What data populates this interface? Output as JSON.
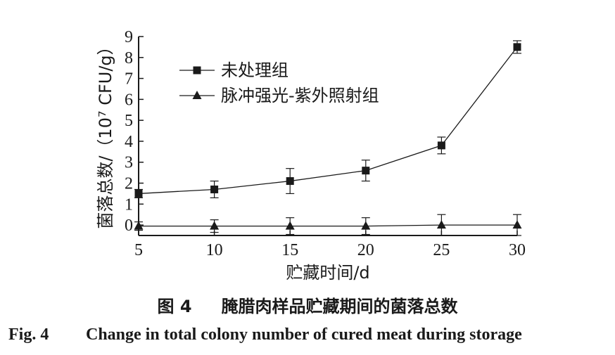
{
  "chart_data": {
    "type": "line",
    "title": "",
    "xlabel": "贮藏时间/d",
    "ylabel": "菌落总数/（10⁷ CFU/g）",
    "x": [
      5,
      10,
      15,
      20,
      25,
      30
    ],
    "xlim": [
      5,
      30
    ],
    "ylim": [
      -0.5,
      9
    ],
    "x_ticks": [
      "5",
      "10",
      "15",
      "20",
      "25",
      "30"
    ],
    "y_ticks": [
      "0",
      "1",
      "2",
      "3",
      "4",
      "5",
      "6",
      "7",
      "8",
      "9"
    ],
    "grid": false,
    "legend_position": "top-left",
    "series": [
      {
        "name": "未处理组",
        "marker": "square",
        "values": [
          1.5,
          1.7,
          2.1,
          2.6,
          3.8,
          8.5
        ],
        "error": [
          0.2,
          0.4,
          0.6,
          0.5,
          0.4,
          0.3
        ]
      },
      {
        "name": "脉冲强光-紫外照射组",
        "marker": "triangle",
        "values": [
          -0.05,
          -0.05,
          -0.05,
          -0.05,
          0.0,
          0.0
        ],
        "error": [
          0.2,
          0.3,
          0.4,
          0.4,
          0.5,
          0.5
        ]
      }
    ],
    "color": "#1a1a1a"
  },
  "caption": {
    "cn_number": "图 4",
    "cn_title": "腌腊肉样品贮藏期间的菌落总数",
    "en_number": "Fig. 4",
    "en_title": "Change in total colony number of cured meat during storage"
  }
}
